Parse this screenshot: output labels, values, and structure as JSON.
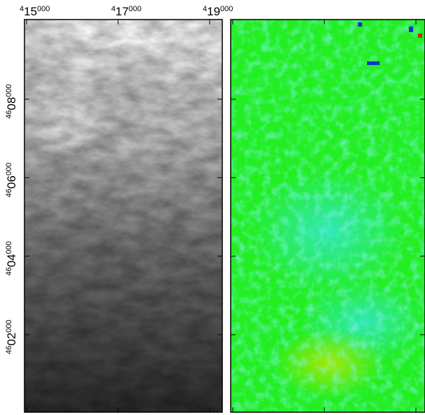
{
  "map": {
    "x_ticks": [
      {
        "value": 415000,
        "parts": [
          "4",
          "15",
          "000"
        ]
      },
      {
        "value": 417000,
        "parts": [
          "4",
          "17",
          "000"
        ]
      },
      {
        "value": 419000,
        "parts": [
          "4",
          "19",
          "000"
        ]
      }
    ],
    "y_ticks": [
      {
        "value": 4608000,
        "parts": [
          "46",
          "08",
          "000"
        ]
      },
      {
        "value": 4606000,
        "parts": [
          "46",
          "06",
          "000"
        ]
      },
      {
        "value": 4604000,
        "parts": [
          "46",
          "04",
          "000"
        ]
      },
      {
        "value": 4602000,
        "parts": [
          "46",
          "02",
          "000"
        ]
      }
    ]
  }
}
